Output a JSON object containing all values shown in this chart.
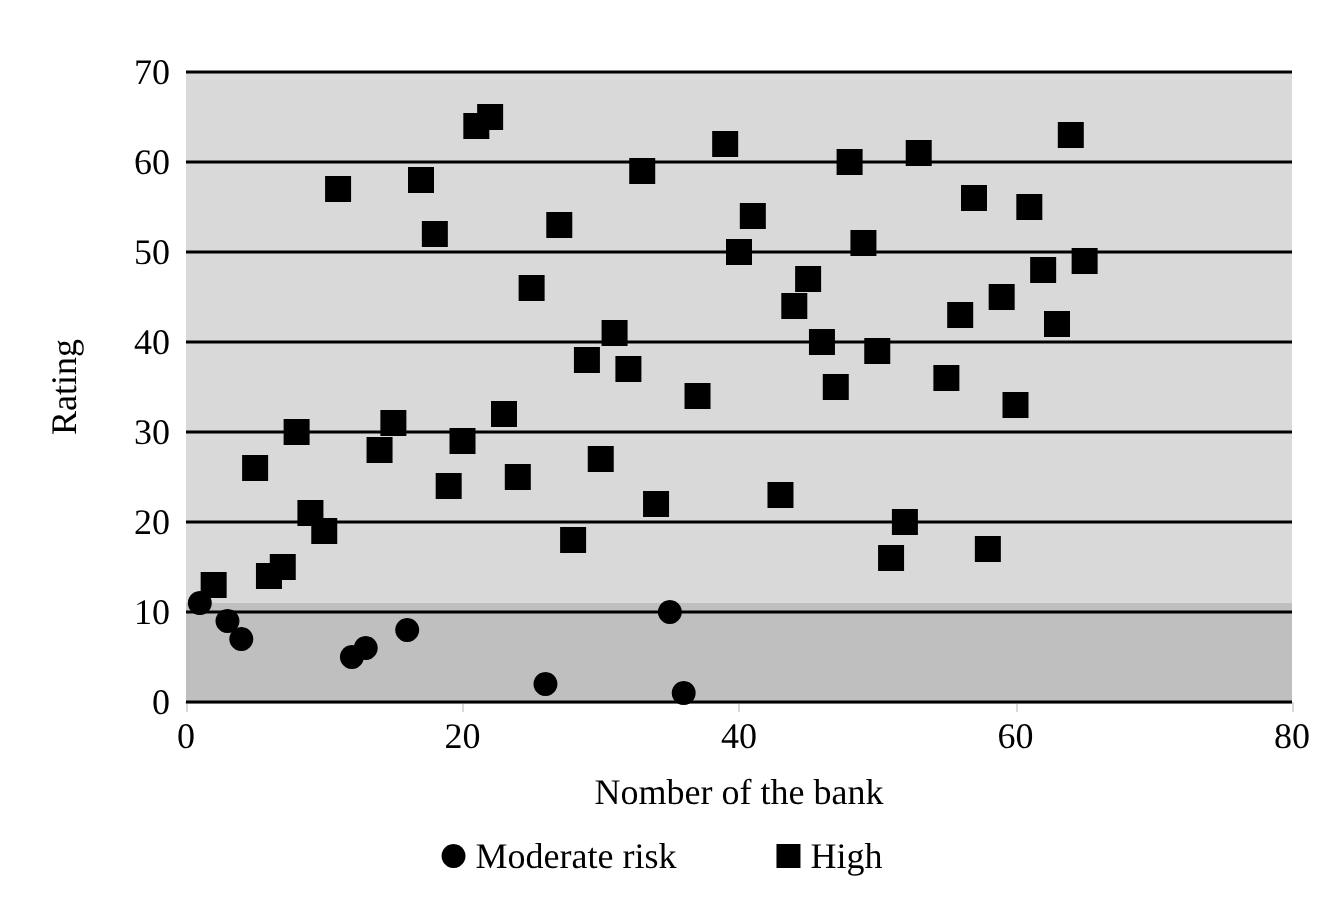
{
  "chart_data": {
    "type": "scatter",
    "xlabel": "Nomber of the bank",
    "ylabel": "Rating",
    "xlim": [
      0,
      80
    ],
    "xticks": [
      0,
      20,
      40,
      60,
      80
    ],
    "ylim": [
      0,
      70
    ],
    "yticks": [
      0,
      10,
      20,
      30,
      40,
      50,
      60,
      70
    ],
    "grid": "y",
    "legend": "bottom",
    "bands": [
      {
        "axis": "y",
        "from": 0,
        "to": 11,
        "color": "#bfbfbf"
      },
      {
        "axis": "y",
        "from": 11,
        "to": 70,
        "color": "#d9d9d9"
      }
    ],
    "series": [
      {
        "name": "Moderate risk",
        "color": "#000000",
        "marker": "circle",
        "x": [
          1,
          3,
          4,
          12,
          13,
          16,
          26,
          35,
          36
        ],
        "values": [
          11,
          9,
          7,
          5,
          6,
          8,
          2,
          10,
          1
        ]
      },
      {
        "name": "High",
        "color": "#000000",
        "marker": "square",
        "x": [
          2,
          5,
          6,
          7,
          8,
          9,
          10,
          11,
          14,
          15,
          17,
          18,
          19,
          20,
          21,
          22,
          23,
          24,
          25,
          27,
          28,
          29,
          30,
          31,
          32,
          33,
          34,
          37,
          39,
          40,
          41,
          43,
          44,
          45,
          46,
          47,
          48,
          49,
          50,
          51,
          52,
          53,
          55,
          56,
          57,
          58,
          59,
          60,
          61,
          62,
          63,
          64,
          65
        ],
        "values": [
          13,
          26,
          14,
          15,
          30,
          21,
          19,
          57,
          28,
          31,
          58,
          52,
          24,
          29,
          64,
          65,
          32,
          25,
          46,
          53,
          18,
          38,
          27,
          41,
          37,
          59,
          22,
          34,
          62,
          50,
          54,
          23,
          44,
          47,
          40,
          35,
          60,
          51,
          39,
          16,
          20,
          61,
          36,
          43,
          56,
          17,
          45,
          33,
          55,
          48,
          42,
          63,
          49
        ]
      }
    ]
  }
}
